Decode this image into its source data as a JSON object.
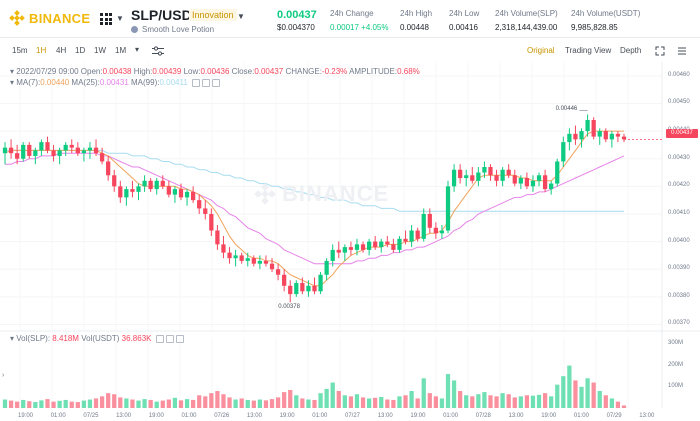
{
  "brand": {
    "logo_text": "BINANCE",
    "color": "#f0b90b"
  },
  "pair": {
    "symbol": "SLP/USDT",
    "tag": "Innovation",
    "coin_name": "Smooth Love Potion"
  },
  "ticker": {
    "last_price": "0.00437",
    "last_price_usd": "$0.004370",
    "stats": [
      {
        "label": "24h Change",
        "value": "0.00017 +4.05%",
        "positive": true
      },
      {
        "label": "24h High",
        "value": "0.00448"
      },
      {
        "label": "24h Low",
        "value": "0.00416"
      },
      {
        "label": "24h Volume(SLP)",
        "value": "2,318,144,439.00"
      },
      {
        "label": "24h Volume(USDT)",
        "value": "9,985,828.85"
      }
    ]
  },
  "toolbar": {
    "intervals": [
      "15m",
      "1H",
      "4H",
      "1D",
      "1W",
      "1M"
    ],
    "active_interval": "1H",
    "views": [
      "Original",
      "Trading View",
      "Depth"
    ],
    "active_view": "Original"
  },
  "candle_info": {
    "date": "2022/07/29 09:00",
    "open_label": "Open:",
    "open": "0.00438",
    "high_label": "High:",
    "high": "0.00439",
    "low_label": "Low:",
    "low": "0.00436",
    "close_label": "Close:",
    "close": "0.00437",
    "change_label": "CHANGE:",
    "change": "-0.23%",
    "amplitude_label": "AMPLITUDE:",
    "amplitude": "0.68%"
  },
  "ma_info": {
    "ma7_label": "MA(7):",
    "ma7": "0.00440",
    "ma25_label": "MA(25):",
    "ma25": "0.00431",
    "ma99_label": "MA(99):",
    "ma99": "0.00411"
  },
  "vol_info": {
    "label": "Vol(SLP):",
    "slp": "8.418M",
    "usdt_label": "Vol(USDT)",
    "usdt": "36.863K"
  },
  "watermark": "BINANCE",
  "colors": {
    "up": "#0ecb81",
    "down": "#f6465d",
    "ma7": "#f0a35c",
    "ma25": "#e684e8",
    "ma99": "#a8dcf0",
    "accent": "#c99400"
  },
  "chart_data": {
    "type": "candlestick",
    "price_axis": [
      "0.00460",
      "0.00450",
      "0.00440",
      "0.00430",
      "0.00420",
      "0.00410",
      "0.00400",
      "0.00390",
      "0.00380",
      "0.00370"
    ],
    "price_range": [
      0.00368,
      0.00465
    ],
    "current_price_label": "0.00437",
    "volume_axis": [
      "300M",
      "200M",
      "100M"
    ],
    "volume_range": [
      0,
      330
    ],
    "time_axis": [
      "19:00",
      "01:00",
      "07/25",
      "13:00",
      "19:00",
      "01:00",
      "07/26",
      "13:00",
      "19:00",
      "01:00",
      "07/27",
      "13:00",
      "19:00",
      "01:00",
      "07/28",
      "13:00",
      "19:00",
      "01:00",
      "07/29",
      "13:00"
    ],
    "annotations": {
      "high": "0.00446",
      "low": "0.00378"
    },
    "candles": [
      [
        0.00432,
        0.00436,
        0.00428,
        0.00434
      ],
      [
        0.00434,
        0.00437,
        0.0043,
        0.00432
      ],
      [
        0.00432,
        0.00435,
        0.00428,
        0.0043
      ],
      [
        0.0043,
        0.00436,
        0.00429,
        0.00435
      ],
      [
        0.00435,
        0.00436,
        0.0043,
        0.00431
      ],
      [
        0.00431,
        0.00434,
        0.00428,
        0.00433
      ],
      [
        0.00433,
        0.00437,
        0.00431,
        0.00436
      ],
      [
        0.00436,
        0.00438,
        0.00432,
        0.00433
      ],
      [
        0.00433,
        0.00435,
        0.00429,
        0.00431
      ],
      [
        0.00431,
        0.00434,
        0.00428,
        0.00433
      ],
      [
        0.00433,
        0.00436,
        0.00431,
        0.00435
      ],
      [
        0.00435,
        0.00437,
        0.00432,
        0.00434
      ],
      [
        0.00434,
        0.00436,
        0.00431,
        0.00432
      ],
      [
        0.00432,
        0.00434,
        0.00429,
        0.00433
      ],
      [
        0.00433,
        0.00436,
        0.0043,
        0.00434
      ],
      [
        0.00434,
        0.00437,
        0.00431,
        0.00432
      ],
      [
        0.00432,
        0.00434,
        0.00428,
        0.00429
      ],
      [
        0.00429,
        0.00431,
        0.00422,
        0.00424
      ],
      [
        0.00424,
        0.00426,
        0.00418,
        0.0042
      ],
      [
        0.0042,
        0.00422,
        0.00414,
        0.00416
      ],
      [
        0.00416,
        0.0042,
        0.00413,
        0.00419
      ],
      [
        0.00419,
        0.00422,
        0.00416,
        0.00418
      ],
      [
        0.00418,
        0.00421,
        0.00415,
        0.0042
      ],
      [
        0.0042,
        0.00424,
        0.00418,
        0.00422
      ],
      [
        0.00422,
        0.00423,
        0.00418,
        0.00419
      ],
      [
        0.00419,
        0.00423,
        0.00417,
        0.00422
      ],
      [
        0.00422,
        0.00424,
        0.00419,
        0.0042
      ],
      [
        0.0042,
        0.00422,
        0.00416,
        0.00417
      ],
      [
        0.00417,
        0.0042,
        0.00414,
        0.00419
      ],
      [
        0.00419,
        0.00421,
        0.00415,
        0.00416
      ],
      [
        0.00416,
        0.00419,
        0.00413,
        0.00418
      ],
      [
        0.00418,
        0.0042,
        0.00414,
        0.00415
      ],
      [
        0.00415,
        0.00417,
        0.0041,
        0.00412
      ],
      [
        0.00412,
        0.00415,
        0.00408,
        0.0041
      ],
      [
        0.0041,
        0.00412,
        0.00402,
        0.00404
      ],
      [
        0.00404,
        0.00406,
        0.00397,
        0.00399
      ],
      [
        0.00399,
        0.00402,
        0.00394,
        0.00396
      ],
      [
        0.00396,
        0.00398,
        0.00392,
        0.00394
      ],
      [
        0.00394,
        0.00397,
        0.00391,
        0.00395
      ],
      [
        0.00395,
        0.00396,
        0.00392,
        0.00393
      ],
      [
        0.00393,
        0.00396,
        0.00391,
        0.00394
      ],
      [
        0.00394,
        0.00395,
        0.00391,
        0.00392
      ],
      [
        0.00392,
        0.00395,
        0.0039,
        0.00393
      ],
      [
        0.00393,
        0.00395,
        0.00391,
        0.00392
      ],
      [
        0.00392,
        0.00394,
        0.00389,
        0.0039
      ],
      [
        0.0039,
        0.00392,
        0.00386,
        0.00388
      ],
      [
        0.00388,
        0.0039,
        0.00382,
        0.00384
      ],
      [
        0.00384,
        0.00386,
        0.00378,
        0.00381
      ],
      [
        0.00381,
        0.00386,
        0.0038,
        0.00385
      ],
      [
        0.00385,
        0.00387,
        0.00381,
        0.00382
      ],
      [
        0.00382,
        0.00386,
        0.0038,
        0.00384
      ],
      [
        0.00384,
        0.00387,
        0.00381,
        0.00382
      ],
      [
        0.00382,
        0.00389,
        0.00381,
        0.00388
      ],
      [
        0.00388,
        0.00394,
        0.00386,
        0.00393
      ],
      [
        0.00393,
        0.00399,
        0.00391,
        0.00397
      ],
      [
        0.00397,
        0.004,
        0.00394,
        0.00396
      ],
      [
        0.00396,
        0.00399,
        0.00393,
        0.00398
      ],
      [
        0.00398,
        0.004,
        0.00395,
        0.00397
      ],
      [
        0.00397,
        0.00401,
        0.00395,
        0.00399
      ],
      [
        0.00399,
        0.004,
        0.00396,
        0.00397
      ],
      [
        0.00397,
        0.00401,
        0.00395,
        0.004
      ],
      [
        0.004,
        0.00402,
        0.00397,
        0.00398
      ],
      [
        0.00398,
        0.00401,
        0.00396,
        0.004
      ],
      [
        0.004,
        0.00402,
        0.00398,
        0.00399
      ],
      [
        0.00399,
        0.00401,
        0.00396,
        0.00397
      ],
      [
        0.00397,
        0.00402,
        0.00396,
        0.00401
      ],
      [
        0.00401,
        0.00404,
        0.00399,
        0.004
      ],
      [
        0.004,
        0.00406,
        0.00398,
        0.00404
      ],
      [
        0.00404,
        0.00405,
        0.004,
        0.00401
      ],
      [
        0.00401,
        0.00412,
        0.004,
        0.0041
      ],
      [
        0.0041,
        0.00412,
        0.00403,
        0.00405
      ],
      [
        0.00405,
        0.00407,
        0.00401,
        0.00403
      ],
      [
        0.00403,
        0.00406,
        0.00401,
        0.00404
      ],
      [
        0.00404,
        0.00422,
        0.00403,
        0.0042
      ],
      [
        0.0042,
        0.00428,
        0.00418,
        0.00426
      ],
      [
        0.00426,
        0.00428,
        0.00421,
        0.00423
      ],
      [
        0.00423,
        0.00426,
        0.0042,
        0.00424
      ],
      [
        0.00424,
        0.00427,
        0.00421,
        0.00422
      ],
      [
        0.00422,
        0.00427,
        0.0042,
        0.00425
      ],
      [
        0.00425,
        0.00429,
        0.00423,
        0.00427
      ],
      [
        0.00427,
        0.00428,
        0.00422,
        0.00424
      ],
      [
        0.00424,
        0.00426,
        0.0042,
        0.00422
      ],
      [
        0.00422,
        0.00427,
        0.0042,
        0.00426
      ],
      [
        0.00426,
        0.00428,
        0.00423,
        0.00424
      ],
      [
        0.00424,
        0.00426,
        0.0042,
        0.00421
      ],
      [
        0.00421,
        0.00424,
        0.00419,
        0.00423
      ],
      [
        0.00423,
        0.00425,
        0.00419,
        0.0042
      ],
      [
        0.0042,
        0.00424,
        0.00418,
        0.00422
      ],
      [
        0.00422,
        0.00425,
        0.0042,
        0.00424
      ],
      [
        0.00424,
        0.00426,
        0.00418,
        0.00419
      ],
      [
        0.00419,
        0.00422,
        0.00417,
        0.00421
      ],
      [
        0.00421,
        0.0043,
        0.0042,
        0.00429
      ],
      [
        0.00429,
        0.00438,
        0.00427,
        0.00436
      ],
      [
        0.00436,
        0.00441,
        0.00433,
        0.00439
      ],
      [
        0.00439,
        0.00442,
        0.00435,
        0.00437
      ],
      [
        0.00437,
        0.00441,
        0.00434,
        0.0044
      ],
      [
        0.0044,
        0.00446,
        0.00438,
        0.00444
      ],
      [
        0.00444,
        0.00445,
        0.00437,
        0.00438
      ],
      [
        0.00438,
        0.00441,
        0.00435,
        0.0044
      ],
      [
        0.0044,
        0.00441,
        0.00436,
        0.00437
      ],
      [
        0.00437,
        0.0044,
        0.00434,
        0.00439
      ],
      [
        0.00439,
        0.0044,
        0.00436,
        0.00438
      ],
      [
        0.00438,
        0.00439,
        0.00436,
        0.00437
      ]
    ],
    "volumes": [
      40,
      35,
      30,
      38,
      32,
      28,
      36,
      42,
      30,
      34,
      38,
      30,
      28,
      35,
      40,
      45,
      55,
      70,
      65,
      50,
      45,
      40,
      35,
      42,
      38,
      30,
      35,
      40,
      48,
      36,
      42,
      38,
      60,
      55,
      70,
      80,
      65,
      50,
      40,
      45,
      38,
      35,
      40,
      36,
      42,
      50,
      75,
      85,
      60,
      45,
      40,
      38,
      70,
      90,
      120,
      80,
      60,
      55,
      65,
      50,
      45,
      48,
      52,
      40,
      38,
      55,
      60,
      80,
      45,
      140,
      70,
      55,
      45,
      160,
      130,
      80,
      60,
      55,
      65,
      75,
      60,
      55,
      70,
      65,
      50,
      55,
      60,
      58,
      62,
      70,
      55,
      110,
      150,
      200,
      130,
      100,
      140,
      120,
      80,
      60,
      45,
      30,
      12
    ],
    "ma7": [
      0.00432,
      0.00433,
      0.00433,
      0.00433,
      0.00433,
      0.00433,
      0.00433,
      0.00433,
      0.00433,
      0.00433,
      0.00433,
      0.00433,
      0.00433,
      0.00433,
      0.00433,
      0.00433,
      0.00432,
      0.00431,
      0.00429,
      0.00427,
      0.00425,
      0.00423,
      0.00421,
      0.0042,
      0.0042,
      0.0042,
      0.0042,
      0.0042,
      0.0042,
      0.00419,
      0.00419,
      0.00418,
      0.00417,
      0.00415,
      0.00413,
      0.0041,
      0.00406,
      0.00402,
      0.00399,
      0.00397,
      0.00395,
      0.00394,
      0.00394,
      0.00393,
      0.00393,
      0.00392,
      0.0039,
      0.00388,
      0.00387,
      0.00386,
      0.00385,
      0.00384,
      0.00384,
      0.00386,
      0.00388,
      0.00391,
      0.00393,
      0.00395,
      0.00396,
      0.00397,
      0.00398,
      0.00398,
      0.00398,
      0.00399,
      0.00399,
      0.00399,
      0.004,
      0.004,
      0.00401,
      0.00402,
      0.00403,
      0.00403,
      0.00404,
      0.00407,
      0.00411,
      0.00414,
      0.00417,
      0.0042,
      0.00423,
      0.00424,
      0.00424,
      0.00424,
      0.00424,
      0.00424,
      0.00424,
      0.00423,
      0.00423,
      0.00422,
      0.00422,
      0.00422,
      0.00422,
      0.00424,
      0.00427,
      0.0043,
      0.00433,
      0.00436,
      0.00439,
      0.0044,
      0.0044,
      0.0044,
      0.0044,
      0.0044,
      0.0044
    ],
    "ma25": [
      0.00428,
      0.00428,
      0.00429,
      0.00429,
      0.0043,
      0.0043,
      0.00431,
      0.00431,
      0.00431,
      0.00432,
      0.00432,
      0.00432,
      0.00432,
      0.00432,
      0.00432,
      0.00432,
      0.00431,
      0.00431,
      0.0043,
      0.00429,
      0.00428,
      0.00427,
      0.00427,
      0.00426,
      0.00425,
      0.00424,
      0.00423,
      0.00422,
      0.00421,
      0.0042,
      0.00419,
      0.00418,
      0.00417,
      0.00416,
      0.00415,
      0.00413,
      0.00412,
      0.0041,
      0.00409,
      0.00407,
      0.00405,
      0.00404,
      0.00403,
      0.00401,
      0.004,
      0.00399,
      0.00397,
      0.00396,
      0.00395,
      0.00394,
      0.00393,
      0.00392,
      0.00392,
      0.00392,
      0.00392,
      0.00392,
      0.00392,
      0.00392,
      0.00393,
      0.00393,
      0.00394,
      0.00394,
      0.00395,
      0.00395,
      0.00396,
      0.00396,
      0.00397,
      0.00397,
      0.00398,
      0.00398,
      0.00399,
      0.004,
      0.00401,
      0.00402,
      0.00404,
      0.00405,
      0.00407,
      0.00408,
      0.0041,
      0.00411,
      0.00412,
      0.00413,
      0.00414,
      0.00415,
      0.00416,
      0.00416,
      0.00417,
      0.00417,
      0.00418,
      0.00418,
      0.00419,
      0.0042,
      0.00421,
      0.00422,
      0.00423,
      0.00424,
      0.00425,
      0.00426,
      0.00427,
      0.00428,
      0.00429,
      0.0043,
      0.00431
    ],
    "ma99": [
      0.00433,
      0.00433,
      0.00433,
      0.00433,
      0.00433,
      0.00433,
      0.00433,
      0.00433,
      0.00433,
      0.00433,
      0.00433,
      0.00433,
      0.00433,
      0.00433,
      0.00433,
      0.00433,
      0.00433,
      0.00432,
      0.00432,
      0.00432,
      0.00432,
      0.00431,
      0.00431,
      0.00431,
      0.0043,
      0.0043,
      0.00429,
      0.00429,
      0.00428,
      0.00428,
      0.00427,
      0.00427,
      0.00426,
      0.00426,
      0.00425,
      0.00425,
      0.00424,
      0.00424,
      0.00423,
      0.00423,
      0.00422,
      0.00422,
      0.00421,
      0.00421,
      0.0042,
      0.0042,
      0.00419,
      0.00419,
      0.00418,
      0.00418,
      0.00417,
      0.00417,
      0.00416,
      0.00416,
      0.00415,
      0.00415,
      0.00415,
      0.00414,
      0.00414,
      0.00413,
      0.00413,
      0.00413,
      0.00412,
      0.00412,
      0.00412,
      0.00411,
      0.00411,
      0.00411,
      0.00411,
      0.00411,
      0.00411,
      0.00411,
      0.00411,
      0.00411,
      0.00411,
      0.00411,
      0.00411,
      0.00411,
      0.00411,
      0.00411,
      0.00411,
      0.00411,
      0.00411,
      0.00411,
      0.00411,
      0.00411,
      0.00411,
      0.00411,
      0.00411,
      0.00411,
      0.00411,
      0.00411,
      0.00411,
      0.00411,
      0.00411,
      0.00411,
      0.00411,
      0.00411,
      0.00411,
      0.00411,
      0.00411,
      0.00411,
      0.00411
    ]
  }
}
